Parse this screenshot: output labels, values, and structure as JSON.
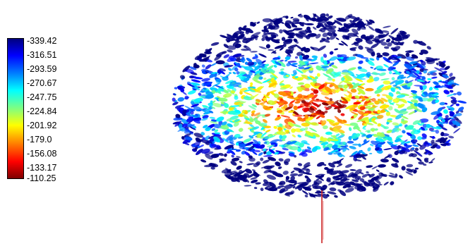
{
  "legend": {
    "ticks": [
      "-339.42",
      "-316.51",
      "-293.59",
      "-270.67",
      "-247.75",
      "-224.84",
      "-201.92",
      "-179.0",
      "-156.08",
      "-133.17",
      "-110.25"
    ]
  },
  "colormap": [
    "#00007f",
    "#0000ff",
    "#0080ff",
    "#00ffff",
    "#80ff80",
    "#ffff00",
    "#ff8000",
    "#ff0000",
    "#7f0000"
  ]
}
